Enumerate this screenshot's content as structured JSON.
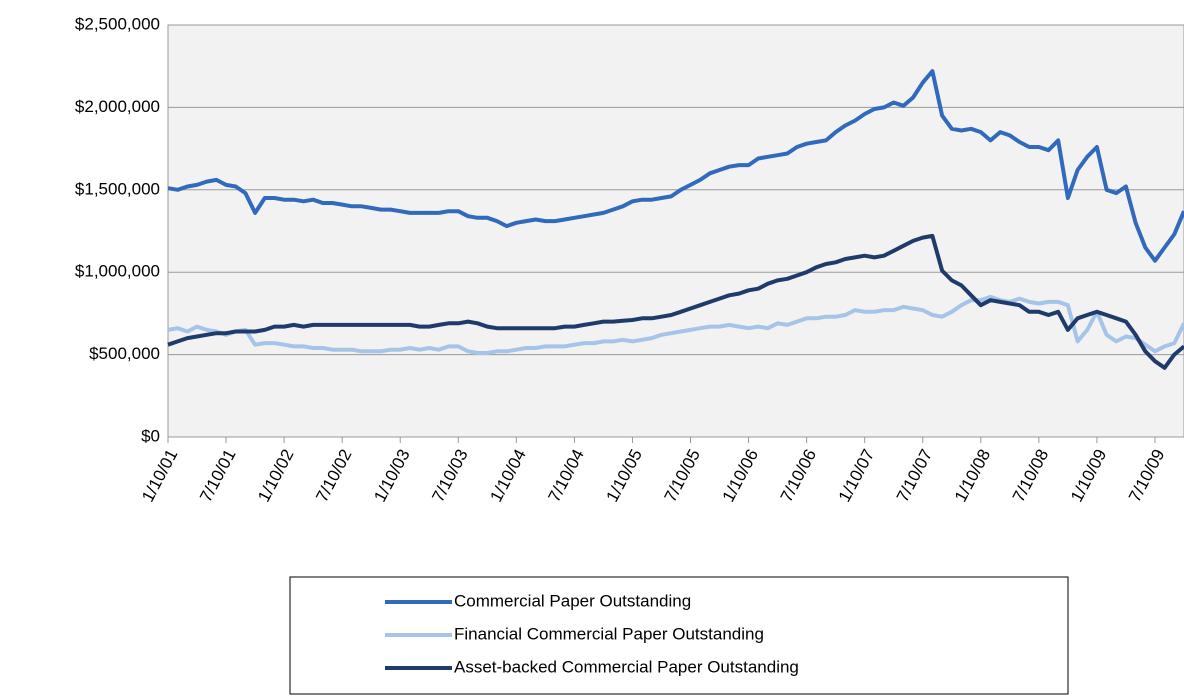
{
  "chart_data": {
    "type": "line",
    "categories": [
      "1/10/01",
      null,
      null,
      null,
      null,
      null,
      "7/10/01",
      null,
      null,
      null,
      null,
      null,
      "1/10/02",
      null,
      null,
      null,
      null,
      null,
      "7/10/02",
      null,
      null,
      null,
      null,
      null,
      "1/10/03",
      null,
      null,
      null,
      null,
      null,
      "7/10/03",
      null,
      null,
      null,
      null,
      null,
      "1/10/04",
      null,
      null,
      null,
      null,
      null,
      "7/10/04",
      null,
      null,
      null,
      null,
      null,
      "1/10/05",
      null,
      null,
      null,
      null,
      null,
      "7/10/05",
      null,
      null,
      null,
      null,
      null,
      "1/10/06",
      null,
      null,
      null,
      null,
      null,
      "7/10/06",
      null,
      null,
      null,
      null,
      null,
      "1/10/07",
      null,
      null,
      null,
      null,
      null,
      "7/10/07",
      null,
      null,
      null,
      null,
      null,
      "1/10/08",
      null,
      null,
      null,
      null,
      null,
      "7/10/08",
      null,
      null,
      null,
      null,
      null,
      "1/10/09",
      null,
      null,
      null,
      null,
      null,
      "7/10/09",
      null,
      null,
      null
    ],
    "series": [
      {
        "name": "Commercial Paper Outstanding",
        "color": "#3169bd",
        "values": [
          1510000,
          1500000,
          1520000,
          1530000,
          1550000,
          1560000,
          1530000,
          1520000,
          1480000,
          1360000,
          1450000,
          1450000,
          1440000,
          1440000,
          1430000,
          1440000,
          1420000,
          1420000,
          1410000,
          1400000,
          1400000,
          1390000,
          1380000,
          1380000,
          1370000,
          1360000,
          1360000,
          1360000,
          1360000,
          1370000,
          1370000,
          1340000,
          1330000,
          1330000,
          1310000,
          1280000,
          1300000,
          1310000,
          1320000,
          1310000,
          1310000,
          1320000,
          1330000,
          1340000,
          1350000,
          1360000,
          1380000,
          1400000,
          1430000,
          1440000,
          1440000,
          1450000,
          1460000,
          1500000,
          1530000,
          1560000,
          1600000,
          1620000,
          1640000,
          1650000,
          1650000,
          1690000,
          1700000,
          1710000,
          1720000,
          1760000,
          1780000,
          1790000,
          1800000,
          1850000,
          1890000,
          1920000,
          1960000,
          1990000,
          2000000,
          2030000,
          2010000,
          2060000,
          2150000,
          2220000,
          1950000,
          1870000,
          1860000,
          1870000,
          1850000,
          1800000,
          1850000,
          1830000,
          1790000,
          1760000,
          1760000,
          1740000,
          1800000,
          1450000,
          1620000,
          1700000,
          1760000,
          1500000,
          1480000,
          1520000,
          1300000,
          1150000,
          1070000,
          1150000,
          1230000,
          1370000
        ]
      },
      {
        "name": "Financial Commercial Paper Outstanding",
        "color": "#a6c4e8",
        "values": [
          650000,
          660000,
          640000,
          670000,
          650000,
          640000,
          620000,
          640000,
          650000,
          560000,
          570000,
          570000,
          560000,
          550000,
          550000,
          540000,
          540000,
          530000,
          530000,
          530000,
          520000,
          520000,
          520000,
          530000,
          530000,
          540000,
          530000,
          540000,
          530000,
          550000,
          550000,
          520000,
          510000,
          510000,
          520000,
          520000,
          530000,
          540000,
          540000,
          550000,
          550000,
          550000,
          560000,
          570000,
          570000,
          580000,
          580000,
          590000,
          580000,
          590000,
          600000,
          620000,
          630000,
          640000,
          650000,
          660000,
          670000,
          670000,
          680000,
          670000,
          660000,
          670000,
          660000,
          690000,
          680000,
          700000,
          720000,
          720000,
          730000,
          730000,
          740000,
          770000,
          760000,
          760000,
          770000,
          770000,
          790000,
          780000,
          770000,
          740000,
          730000,
          760000,
          800000,
          830000,
          830000,
          850000,
          830000,
          820000,
          840000,
          820000,
          810000,
          820000,
          820000,
          800000,
          580000,
          650000,
          760000,
          620000,
          580000,
          610000,
          600000,
          560000,
          520000,
          550000,
          570000,
          690000
        ]
      },
      {
        "name": "Asset-backed Commercial Paper Outstanding",
        "color": "#1f3b6b",
        "values": [
          560000,
          580000,
          600000,
          610000,
          620000,
          630000,
          630000,
          640000,
          640000,
          640000,
          650000,
          670000,
          670000,
          680000,
          670000,
          680000,
          680000,
          680000,
          680000,
          680000,
          680000,
          680000,
          680000,
          680000,
          680000,
          680000,
          670000,
          670000,
          680000,
          690000,
          690000,
          700000,
          690000,
          670000,
          660000,
          660000,
          660000,
          660000,
          660000,
          660000,
          660000,
          670000,
          670000,
          680000,
          690000,
          700000,
          700000,
          705000,
          710000,
          720000,
          720000,
          730000,
          740000,
          760000,
          780000,
          800000,
          820000,
          840000,
          860000,
          870000,
          890000,
          900000,
          930000,
          950000,
          960000,
          980000,
          1000000,
          1030000,
          1050000,
          1060000,
          1080000,
          1090000,
          1100000,
          1090000,
          1100000,
          1130000,
          1160000,
          1190000,
          1210000,
          1220000,
          1010000,
          950000,
          920000,
          860000,
          800000,
          830000,
          820000,
          810000,
          800000,
          760000,
          760000,
          740000,
          760000,
          650000,
          720000,
          740000,
          760000,
          740000,
          720000,
          700000,
          620000,
          520000,
          460000,
          420000,
          500000,
          550000
        ]
      }
    ],
    "ylim": [
      0,
      2500000
    ],
    "yticks": [
      {
        "value": 0,
        "label": "$0"
      },
      {
        "value": 500000,
        "label": "$500,000"
      },
      {
        "value": 1000000,
        "label": "$1,000,000"
      },
      {
        "value": 1500000,
        "label": "$1,500,000"
      },
      {
        "value": 2000000,
        "label": "$2,000,000"
      },
      {
        "value": 2500000,
        "label": "$2,500,000"
      }
    ],
    "grid": true,
    "legend": "bottom"
  }
}
